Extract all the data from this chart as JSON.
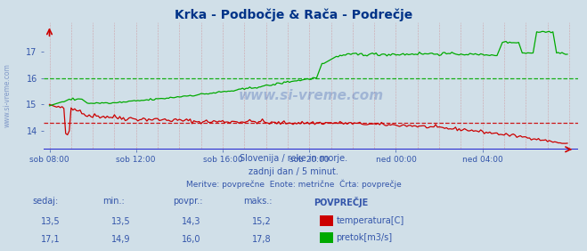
{
  "title": "Krka - Podbočje & Rača - Podrečje",
  "bg_color": "#d0dfe8",
  "plot_bg_color": "#d0dfe8",
  "subtitle1": "Slovenija / reke in morje.",
  "subtitle2": "zadnji dan / 5 minut.",
  "subtitle3": "Meritve: povprečne  Enote: metrične  Črta: povprečje",
  "xlabel_ticks": [
    "sob 08:00",
    "sob 12:00",
    "sob 16:00",
    "sob 20:00",
    "ned 00:00",
    "ned 04:00"
  ],
  "ylabel_ticks": [
    14,
    15,
    16,
    17
  ],
  "ylim": [
    13.3,
    18.1
  ],
  "text_color": "#3355aa",
  "grid_color": "#cc4444",
  "xaxis_color": "#0000cc",
  "temp_color": "#cc0000",
  "flow_color": "#00aa00",
  "avg_temp": 14.3,
  "avg_flow": 16.0,
  "row1": [
    "13,5",
    "13,5",
    "14,3",
    "15,2"
  ],
  "row2": [
    "17,1",
    "14,9",
    "16,0",
    "17,8"
  ],
  "label1": "temperatura[C]",
  "label2": "pretok[m3/s]",
  "n_points": 288
}
